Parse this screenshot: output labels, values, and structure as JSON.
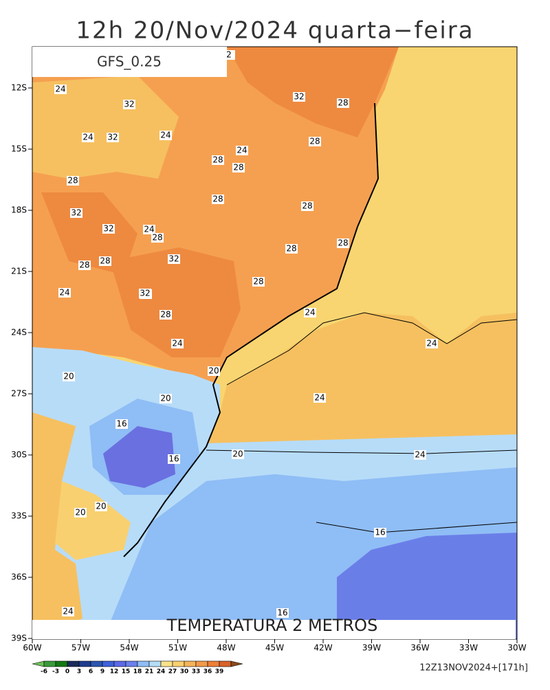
{
  "title": "12h 20/Nov/2024 quarta−feira",
  "model": "GFS_0.25",
  "subtitle": "TEMPERATURA 2 METROS",
  "footer": "12Z13NOV2024+[171h]",
  "lat_labels": [
    "12S",
    "15S",
    "18S",
    "21S",
    "24S",
    "27S",
    "30S",
    "33S",
    "36S",
    "39S"
  ],
  "lon_labels": [
    "60W",
    "57W",
    "54W",
    "51W",
    "48W",
    "45W",
    "42W",
    "39W",
    "36W",
    "33W",
    "30W"
  ],
  "colorbar": {
    "labels": [
      -6,
      -3,
      0,
      3,
      6,
      9,
      12,
      15,
      18,
      21,
      24,
      27,
      30,
      33,
      36,
      39
    ],
    "colors": [
      "#6fc05a",
      "#3a9a3a",
      "#137a13",
      "#1a2a5a",
      "#1e3c8c",
      "#2a55b0",
      "#3c62d8",
      "#5a6ae6",
      "#6b80ec",
      "#8fbdf5",
      "#b5dcf8",
      "#f9e28a",
      "#f8d070",
      "#f5b35a",
      "#f29a4a",
      "#ec8038",
      "#d8622a",
      "#8a4a1a"
    ]
  },
  "contour_labels": [
    "2",
    "24",
    "32",
    "32",
    "24",
    "24",
    "32",
    "28",
    "32",
    "28",
    "24",
    "28",
    "28",
    "28",
    "28",
    "32",
    "32",
    "24",
    "28",
    "28",
    "28",
    "32",
    "28",
    "24",
    "32",
    "28",
    "28",
    "24",
    "28",
    "28",
    "24",
    "24",
    "20",
    "20",
    "24",
    "16",
    "20",
    "16",
    "20",
    "24",
    "20",
    "20",
    "16",
    "24",
    "16"
  ]
}
